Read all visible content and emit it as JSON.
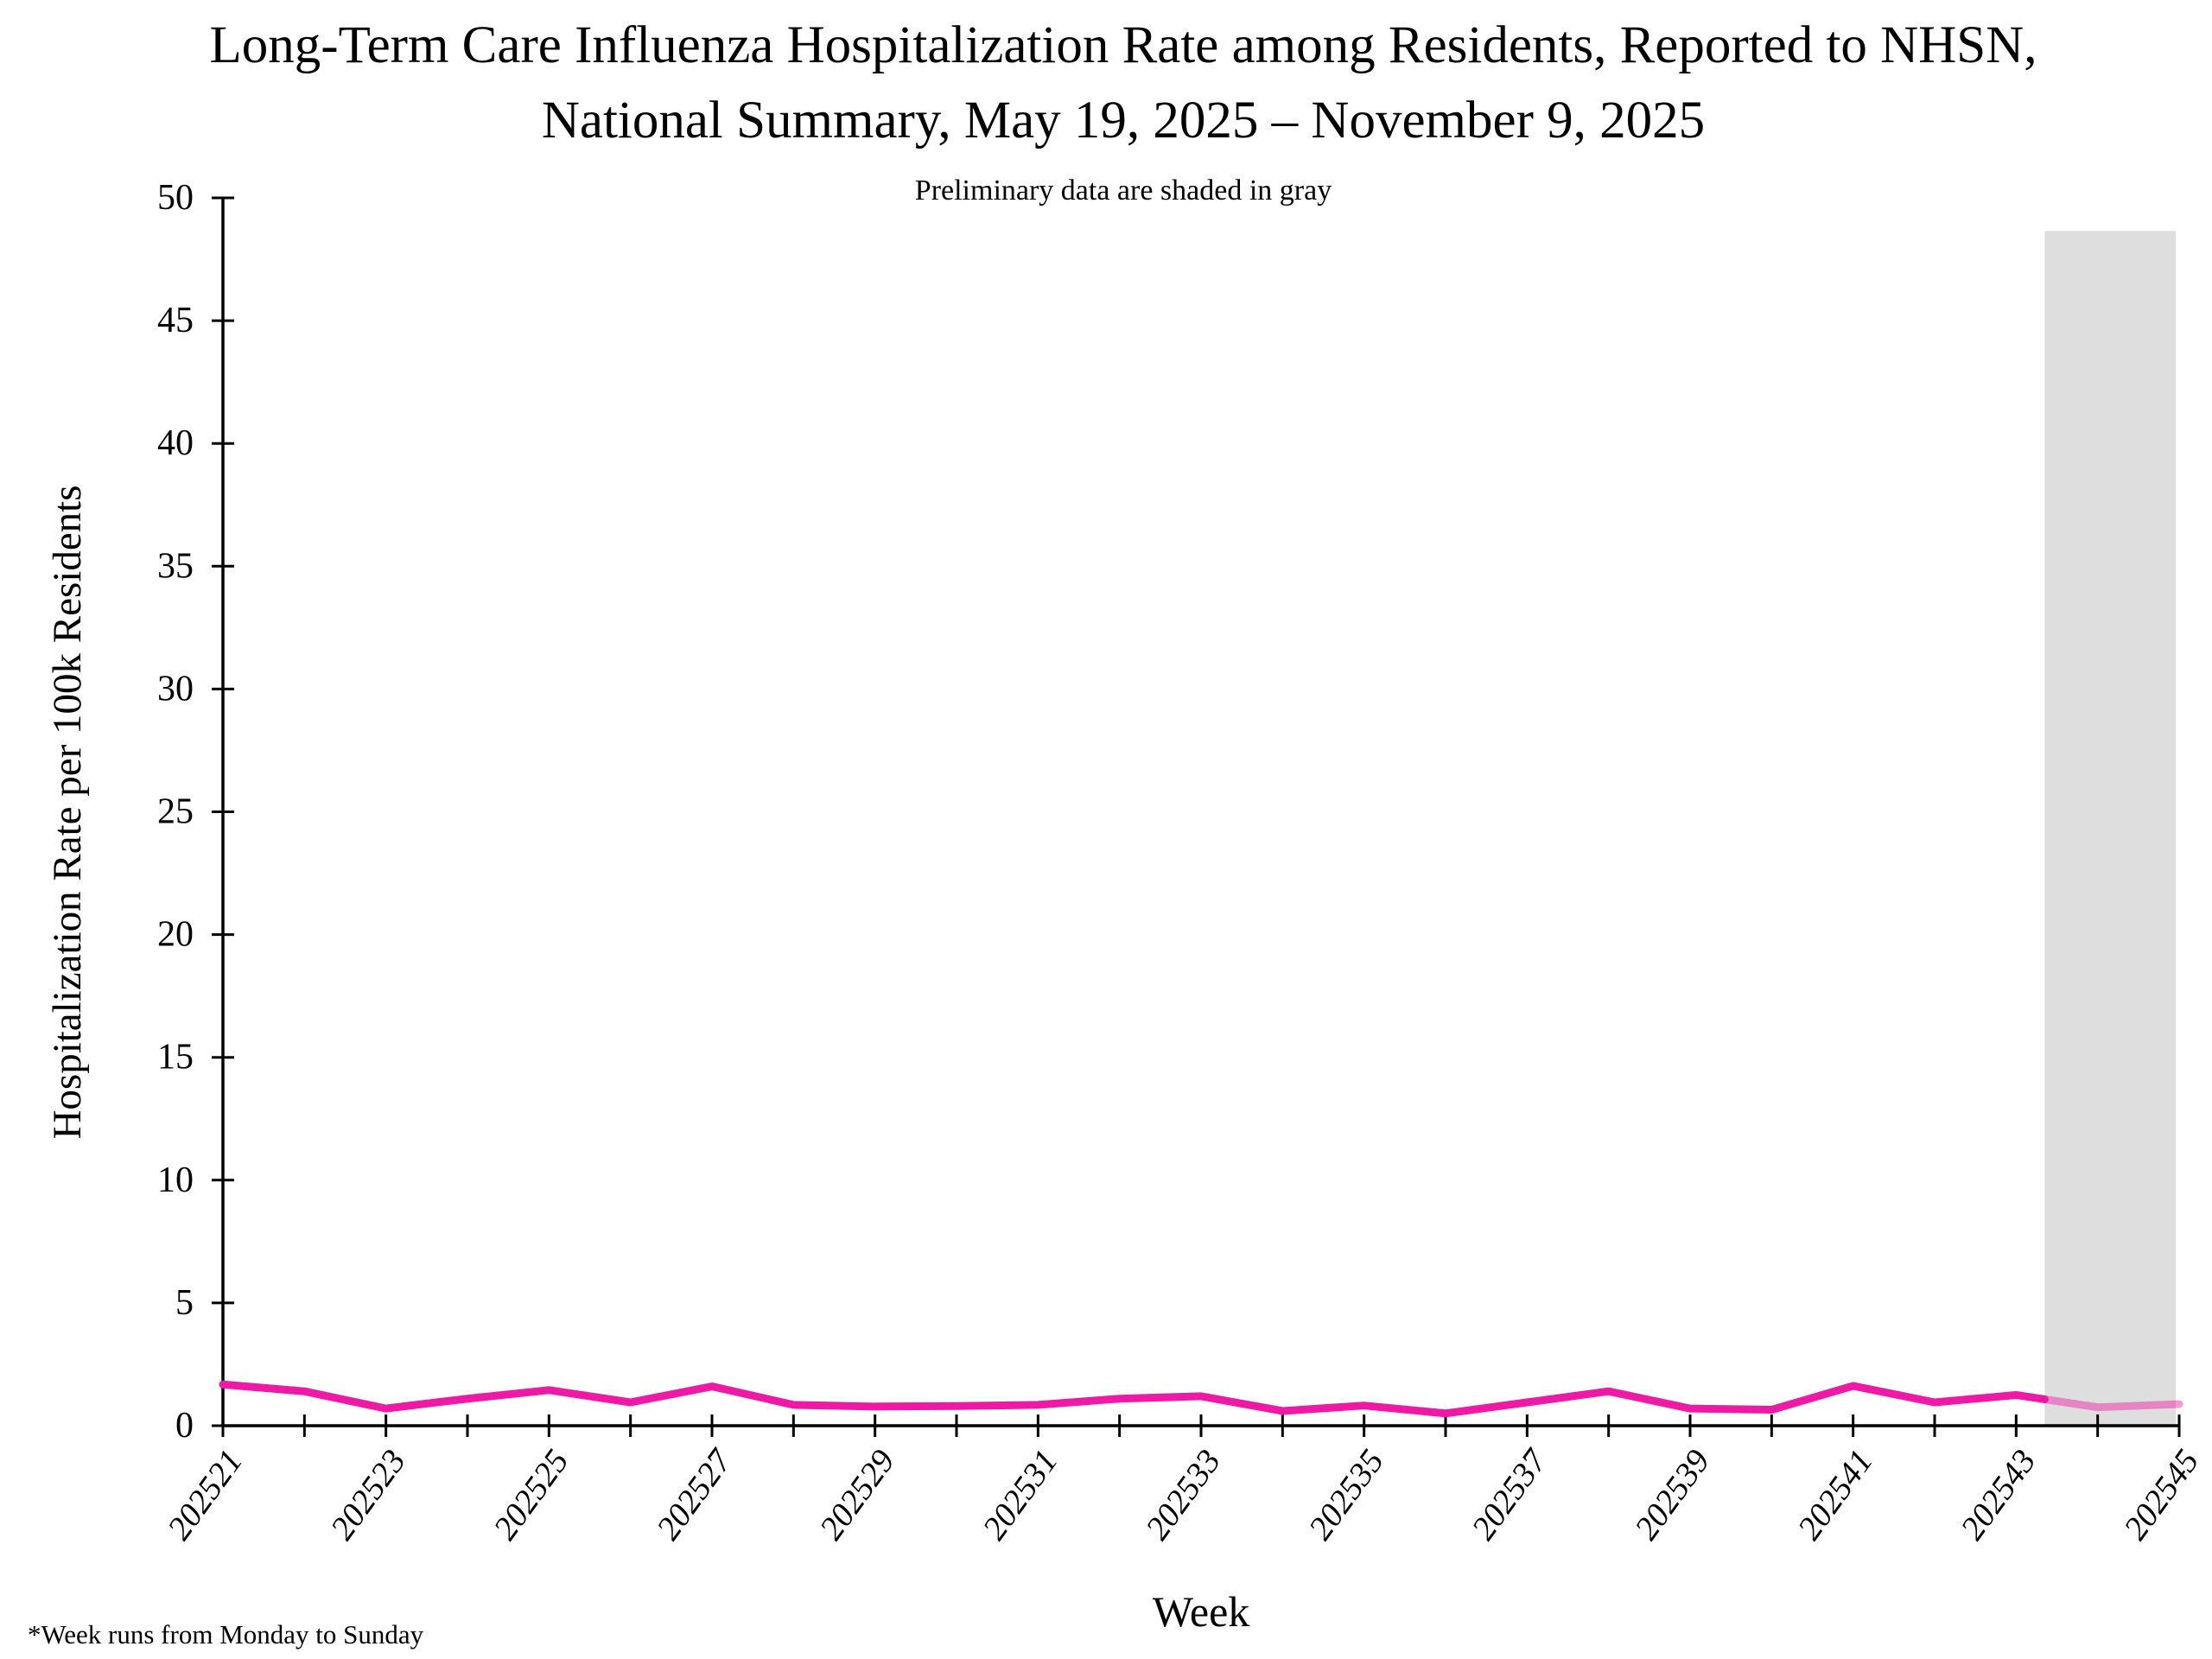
{
  "figure": {
    "title_line1": "Long-Term Care Influenza Hospitalization Rate among Residents, Reported to NHSN,",
    "title_line2": "National Summary, May 19, 2025 – November 9, 2025",
    "subtitle": "Preliminary data are shaded in gray",
    "ylabel": "Hospitalization Rate per 100k Residents",
    "xlabel": "Week",
    "footnote": "*Week runs from Monday to Sunday"
  },
  "chart_data": {
    "type": "line",
    "title": "Long-Term Care Influenza Hospitalization Rate among Residents, Reported to NHSN, National Summary, May 19, 2025 – November 9, 2025",
    "subtitle": "Preliminary data are shaded in gray",
    "xlabel": "Week",
    "ylabel": "Hospitalization Rate per 100k Residents",
    "ylim": [
      0,
      50
    ],
    "y_ticks": [
      0,
      5,
      10,
      15,
      20,
      25,
      30,
      35,
      40,
      45,
      50
    ],
    "grid": false,
    "legend": "none",
    "axis_color": "#000000",
    "background_color": "#ffffff",
    "categories": [
      "202521",
      "202522",
      "202523",
      "202524",
      "202525",
      "202526",
      "202527",
      "202528",
      "202529",
      "202530",
      "202531",
      "202532",
      "202533",
      "202534",
      "202535",
      "202536",
      "202537",
      "202538",
      "202539",
      "202540",
      "202541",
      "202542",
      "202543",
      "202544",
      "202545"
    ],
    "x_tick_labels_shown": [
      "202521",
      "202523",
      "202525",
      "202527",
      "202529",
      "202531",
      "202533",
      "202535",
      "202537",
      "202539",
      "202541",
      "202543",
      "202545"
    ],
    "series": [
      {
        "name": "Influenza hospitalization rate per 100k residents",
        "color": "#EE19A4",
        "values": [
          1.68,
          1.4,
          0.7,
          1.1,
          1.45,
          0.95,
          1.6,
          0.85,
          0.78,
          0.8,
          0.85,
          1.1,
          1.2,
          0.6,
          0.82,
          0.5,
          0.95,
          1.4,
          0.7,
          0.65,
          1.62,
          0.95,
          1.25,
          0.75,
          0.88
        ]
      }
    ],
    "preliminary_region": {
      "label": "Preliminary data are shaded in gray",
      "fill_color": "#DEDEDE",
      "start_category_index": 22.35,
      "end_category_index": 23.96,
      "top_value": 48.65,
      "line_opacity": 0.45
    },
    "footnote": "*Week runs from Monday to Sunday"
  }
}
